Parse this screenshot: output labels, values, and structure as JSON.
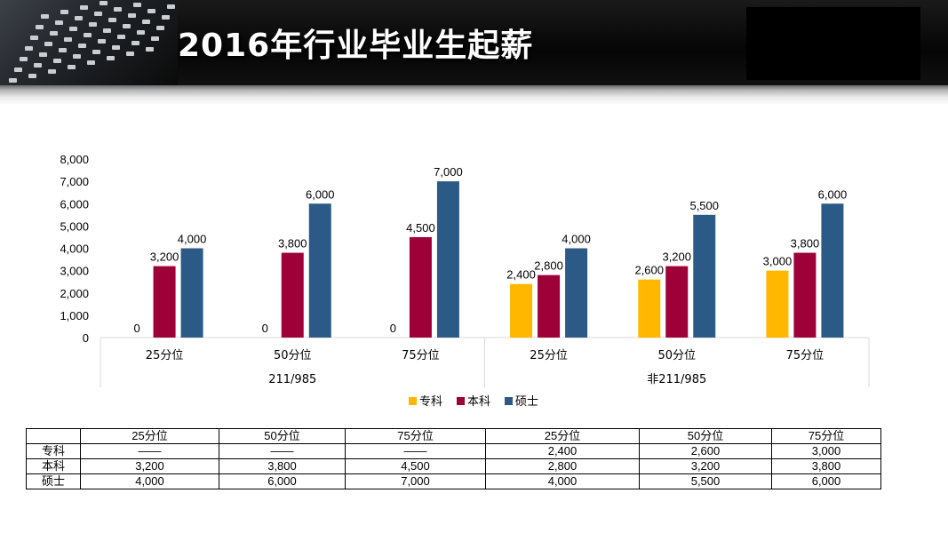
{
  "header": {
    "title": "2016年行业毕业生起薪"
  },
  "colors": {
    "zhuanke": "#FFB700",
    "benke": "#9E0038",
    "shuoshi": "#2B5A87"
  },
  "chart_data": {
    "type": "bar",
    "groups": [
      {
        "label": "211/985",
        "categories": [
          "25分位",
          "50分位",
          "75分位"
        ]
      },
      {
        "label": "非211/985",
        "categories": [
          "25分位",
          "50分位",
          "75分位"
        ]
      }
    ],
    "categories": [
      "25分位",
      "50分位",
      "75分位",
      "25分位",
      "50分位",
      "75分位"
    ],
    "series": [
      {
        "name": "专科",
        "values": [
          0,
          0,
          0,
          2400,
          2600,
          3000
        ],
        "labels": [
          "0",
          "0",
          "0",
          "2,400",
          "2,600",
          "3,000"
        ]
      },
      {
        "name": "本科",
        "values": [
          3200,
          3800,
          4500,
          2800,
          3200,
          3800
        ],
        "labels": [
          "3,200",
          "3,800",
          "4,500",
          "2,800",
          "3,200",
          "3,800"
        ]
      },
      {
        "name": "硕士",
        "values": [
          4000,
          6000,
          7000,
          4000,
          5500,
          6000
        ],
        "labels": [
          "4,000",
          "6,000",
          "7,000",
          "4,000",
          "5,500",
          "6,000"
        ]
      }
    ],
    "ylim": [
      0,
      8000
    ],
    "yticks": [
      0,
      1000,
      2000,
      3000,
      4000,
      5000,
      6000,
      7000,
      8000
    ],
    "ytick_labels": [
      "0",
      "1,000",
      "2,000",
      "3,000",
      "4,000",
      "5,000",
      "6,000",
      "7,000",
      "8,000"
    ],
    "legend_position": "bottom"
  },
  "table": {
    "header": [
      "",
      "25分位",
      "50分位",
      "75分位",
      "25分位",
      "50分位",
      "75分位"
    ],
    "rows": [
      {
        "label": "专科",
        "cells": [
          "——",
          "——",
          "——",
          "2,400",
          "2,600",
          "3,000"
        ]
      },
      {
        "label": "本科",
        "cells": [
          "3,200",
          "3,800",
          "4,500",
          "2,800",
          "3,200",
          "3,800"
        ]
      },
      {
        "label": "硕士",
        "cells": [
          "4,000",
          "6,000",
          "7,000",
          "4,000",
          "5,500",
          "6,000"
        ]
      }
    ]
  }
}
